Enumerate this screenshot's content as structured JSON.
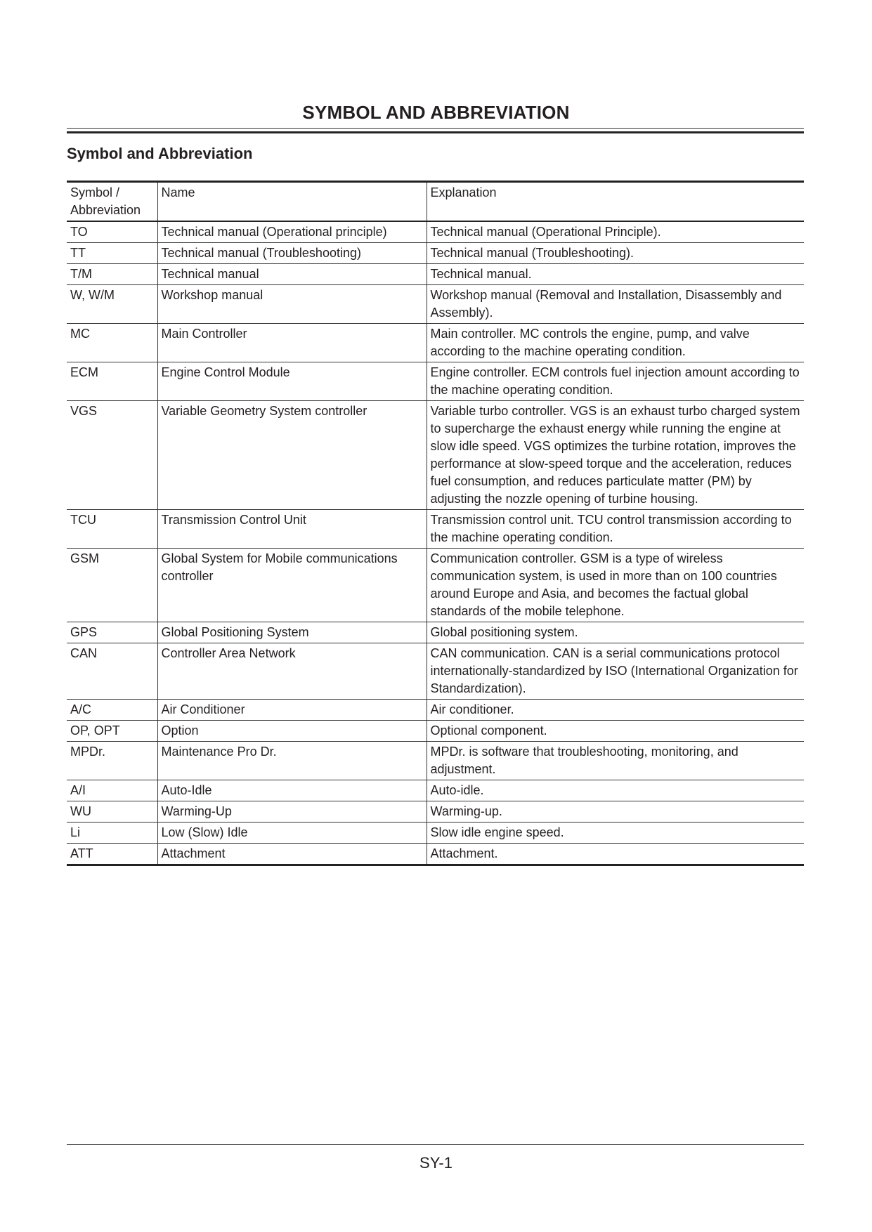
{
  "page": {
    "title": "SYMBOL AND ABBREVIATION",
    "section_heading": "Symbol and Abbreviation",
    "page_number": "SY-1"
  },
  "table": {
    "headers": [
      "Symbol / Abbreviation",
      "Name",
      "Explanation"
    ],
    "rows": [
      [
        "TO",
        "Technical manual (Operational principle)",
        "Technical manual (Operational Principle)."
      ],
      [
        "TT",
        "Technical manual (Troubleshooting)",
        "Technical manual (Troubleshooting)."
      ],
      [
        "T/M",
        "Technical manual",
        "Technical manual."
      ],
      [
        "W, W/M",
        "Workshop manual",
        "Workshop manual (Removal and Installation, Disassembly and Assembly)."
      ],
      [
        "MC",
        "Main Controller",
        "Main controller. MC controls the engine, pump, and valve according to the machine operating condition."
      ],
      [
        "ECM",
        "Engine Control Module",
        "Engine controller. ECM controls fuel injection amount according to the machine operating condition."
      ],
      [
        "VGS",
        "Variable Geometry System controller",
        "Variable turbo controller. VGS is an exhaust turbo charged system to supercharge the exhaust energy while running the engine at slow idle speed. VGS optimizes the turbine rotation, improves the performance at slow-speed torque and the acceleration, reduces fuel consumption, and reduces particulate matter (PM) by adjusting the nozzle opening of turbine housing."
      ],
      [
        "TCU",
        "Transmission Control Unit",
        "Transmission control unit. TCU control transmission according to the machine operating condition."
      ],
      [
        "GSM",
        "Global System for Mobile communications controller",
        "Communication controller. GSM is a type of wireless communication system, is used in more than on 100 countries around Europe and Asia, and becomes the factual global standards of the mobile telephone."
      ],
      [
        "GPS",
        "Global Positioning System",
        "Global positioning system."
      ],
      [
        "CAN",
        "Controller Area Network",
        "CAN communication. CAN is a serial communications protocol internationally-standardized by ISO (International Organization for Standardization)."
      ],
      [
        "A/C",
        "Air Conditioner",
        "Air conditioner."
      ],
      [
        "OP, OPT",
        "Option",
        "Optional component."
      ],
      [
        "MPDr.",
        "Maintenance Pro Dr.",
        "MPDr. is software that troubleshooting, monitoring, and adjustment."
      ],
      [
        "A/I",
        "Auto-Idle",
        "Auto-idle."
      ],
      [
        "WU",
        "Warming-Up",
        "Warming-up."
      ],
      [
        "Li",
        "Low (Slow) Idle",
        "Slow idle engine speed."
      ],
      [
        "ATT",
        "Attachment",
        "Attachment."
      ]
    ]
  }
}
